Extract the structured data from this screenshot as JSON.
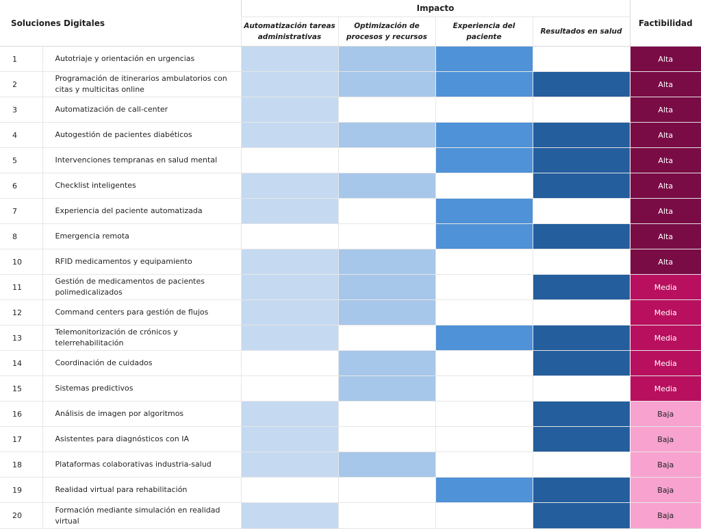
{
  "header": {
    "title": "Soluciones Digitales",
    "impact_label": "Impacto",
    "feasibility_label": "Factibilidad",
    "impact_columns": [
      "Automatización tareas administrativas",
      "Optimización de procesos y recursos",
      "Experiencia del paciente",
      "Resultados en salud"
    ]
  },
  "colors": {
    "impact_admin": "#c5daf1",
    "impact_process": "#a7c7ea",
    "impact_patient": "#4f92d7",
    "impact_health": "#245e9d",
    "fact_alta": "#7a0c45",
    "fact_media": "#b8105e",
    "fact_baja": "#f7a2cf"
  },
  "rows": [
    {
      "num": "1",
      "label": "Autotriaje y orientación en urgencias",
      "impact": [
        true,
        true,
        true,
        false
      ],
      "feasibility": "Alta"
    },
    {
      "num": "2",
      "label": "Programación de itinerarios ambulatorios con citas y multicitas online",
      "impact": [
        true,
        true,
        true,
        true
      ],
      "feasibility": "Alta"
    },
    {
      "num": "3",
      "label": "Automatización de call-center",
      "impact": [
        true,
        false,
        false,
        false
      ],
      "feasibility": "Alta"
    },
    {
      "num": "4",
      "label": "Autogestión de pacientes diabéticos",
      "impact": [
        true,
        true,
        true,
        true
      ],
      "feasibility": "Alta"
    },
    {
      "num": "5",
      "label": "Intervenciones tempranas en salud mental",
      "impact": [
        false,
        false,
        true,
        true
      ],
      "feasibility": "Alta"
    },
    {
      "num": "6",
      "label": "Checklist inteligentes",
      "impact": [
        true,
        true,
        false,
        true
      ],
      "feasibility": "Alta"
    },
    {
      "num": "7",
      "label": "Experiencia del paciente automatizada",
      "impact": [
        true,
        false,
        true,
        false
      ],
      "feasibility": "Alta"
    },
    {
      "num": "8",
      "label": "Emergencia remota",
      "impact": [
        false,
        false,
        true,
        true
      ],
      "feasibility": "Alta"
    },
    {
      "num": "10",
      "label": "RFID medicamentos y equipamiento",
      "impact": [
        true,
        true,
        false,
        false
      ],
      "feasibility": "Alta"
    },
    {
      "num": "11",
      "label": "Gestión de medicamentos de pacientes polimedicalizados",
      "impact": [
        true,
        true,
        false,
        true
      ],
      "feasibility": "Media"
    },
    {
      "num": "12",
      "label": "Command centers para gestión de flujos",
      "impact": [
        true,
        true,
        false,
        false
      ],
      "feasibility": "Media"
    },
    {
      "num": "13",
      "label": "Telemonitorización de crónicos y telerrehabilitación",
      "impact": [
        true,
        false,
        true,
        true
      ],
      "feasibility": "Media"
    },
    {
      "num": "14",
      "label": "Coordinación de cuidados",
      "impact": [
        false,
        true,
        false,
        true
      ],
      "feasibility": "Media"
    },
    {
      "num": "15",
      "label": "Sistemas predictivos",
      "impact": [
        false,
        true,
        false,
        false
      ],
      "feasibility": "Media"
    },
    {
      "num": "16",
      "label": "Análisis de imagen por algoritmos",
      "impact": [
        true,
        false,
        false,
        true
      ],
      "feasibility": "Baja"
    },
    {
      "num": "17",
      "label": "Asistentes para diagnósticos con IA",
      "impact": [
        true,
        false,
        false,
        true
      ],
      "feasibility": "Baja"
    },
    {
      "num": "18",
      "label": "Plataformas colaborativas industria-salud",
      "impact": [
        true,
        true,
        false,
        false
      ],
      "feasibility": "Baja"
    },
    {
      "num": "19",
      "label": "Realidad virtual para rehabilitación",
      "impact": [
        false,
        false,
        true,
        true
      ],
      "feasibility": "Baja"
    },
    {
      "num": "20",
      "label": "Formación mediante simulación en realidad virtual",
      "impact": [
        true,
        false,
        false,
        true
      ],
      "feasibility": "Baja"
    }
  ]
}
